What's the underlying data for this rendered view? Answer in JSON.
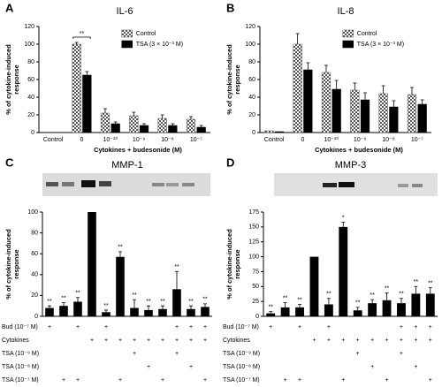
{
  "chart_data": [
    {
      "type": "bar",
      "panel": "A",
      "title": "IL-6",
      "ylabel": [
        "% of cytokine-induced",
        "response"
      ],
      "xlabel": "Cytokines + budesonide (M)",
      "categories": [
        "Control",
        "0",
        "10⁻¹⁰",
        "10⁻⁹",
        "10⁻⁸",
        "10⁻⁷"
      ],
      "series": [
        {
          "name": "Control",
          "color": "#555555",
          "pattern": "checker",
          "values": [
            0,
            100,
            22,
            19,
            16,
            15
          ],
          "errors": [
            0,
            2,
            5,
            4,
            4,
            3
          ]
        },
        {
          "name": "TSA (3 × 10⁻³ M)",
          "color": "#000000",
          "values": [
            0,
            65,
            10,
            8,
            8,
            6
          ],
          "errors": [
            0,
            4,
            2,
            2,
            2,
            2
          ]
        }
      ],
      "significance": [
        null,
        "**",
        null,
        null,
        null,
        null
      ],
      "ylim": [
        0,
        120
      ],
      "yticks": [
        0,
        20,
        40,
        60,
        80,
        100,
        120
      ]
    },
    {
      "type": "bar",
      "panel": "B",
      "title": "IL-8",
      "ylabel": [
        "% of cytokine-induced",
        "response"
      ],
      "xlabel": "Cytokines + budesonide (M)",
      "categories": [
        "Control",
        "0",
        "10⁻¹⁰",
        "10⁻⁹",
        "10⁻⁸",
        "10⁻⁷"
      ],
      "series": [
        {
          "name": "Control",
          "color": "#555555",
          "pattern": "checker",
          "values": [
            2,
            100,
            68,
            48,
            44,
            43
          ],
          "errors": [
            0,
            12,
            8,
            8,
            9,
            8
          ]
        },
        {
          "name": "TSA (3 × 10⁻³ M)",
          "color": "#000000",
          "values": [
            1,
            71,
            49,
            37,
            29,
            32
          ],
          "errors": [
            0,
            8,
            10,
            8,
            7,
            5
          ]
        }
      ],
      "ylim": [
        0,
        120
      ],
      "yticks": [
        0,
        20,
        40,
        60,
        80,
        100,
        120
      ]
    },
    {
      "type": "bar",
      "panel": "C",
      "title": "MMP-1",
      "ylabel": [
        "% of cytokine-induced",
        "response"
      ],
      "color": "#000000",
      "values": [
        8,
        10,
        14,
        100,
        4,
        57,
        8,
        6,
        7,
        26,
        7,
        9
      ],
      "errors": [
        2,
        3,
        4,
        0,
        2,
        5,
        8,
        4,
        3,
        17,
        3,
        3
      ],
      "significance": [
        "**",
        "**",
        "**",
        null,
        "**",
        "**",
        "**",
        "**",
        "**",
        "**",
        "**",
        "**"
      ],
      "ylim": [
        0,
        100
      ],
      "yticks": [
        0,
        20,
        40,
        60,
        80,
        100
      ],
      "table": [
        {
          "label": "Bud (10⁻⁷ M)",
          "marks": [
            "+",
            null,
            "+",
            null,
            "+",
            null,
            null,
            null,
            null,
            "+",
            "+",
            "+"
          ]
        },
        {
          "label": "Cytokines",
          "marks": [
            null,
            null,
            null,
            "+",
            "+",
            "+",
            "+",
            "+",
            "+",
            "+",
            "+",
            "+"
          ]
        },
        {
          "label": "TSA (10⁻⁹ M)",
          "marks": [
            null,
            null,
            null,
            null,
            null,
            null,
            "+",
            null,
            null,
            "+",
            null,
            null
          ]
        },
        {
          "label": "TSA (10⁻⁸ M)",
          "marks": [
            null,
            null,
            null,
            null,
            null,
            null,
            null,
            "+",
            null,
            null,
            "+",
            null
          ]
        },
        {
          "label": "TSA (10⁻⁷ M)",
          "marks": [
            null,
            "+",
            "+",
            null,
            null,
            "+",
            null,
            null,
            "+",
            null,
            null,
            "+"
          ]
        }
      ]
    },
    {
      "type": "bar",
      "panel": "D",
      "title": "MMP-3",
      "ylabel": [
        "% of cytokine-induced",
        "response"
      ],
      "color": "#000000",
      "values": [
        5,
        15,
        15,
        100,
        20,
        150,
        10,
        22,
        27,
        22,
        38,
        38
      ],
      "errors": [
        3,
        8,
        5,
        0,
        10,
        8,
        5,
        6,
        12,
        8,
        12,
        10
      ],
      "significance": [
        "**",
        "**",
        "**",
        null,
        "**",
        "*",
        "**",
        "**",
        "**",
        "**",
        "**",
        "**"
      ],
      "ylim": [
        0,
        175
      ],
      "yticks": [
        0,
        25,
        50,
        75,
        100,
        125,
        150,
        175
      ],
      "table": [
        {
          "label": "Bud (10⁻⁷ M)",
          "marks": [
            "+",
            null,
            "+",
            null,
            "+",
            null,
            null,
            null,
            null,
            "+",
            "+",
            "+"
          ]
        },
        {
          "label": "Cytokines",
          "marks": [
            null,
            null,
            null,
            "+",
            "+",
            "+",
            "+",
            "+",
            "+",
            "+",
            "+",
            "+"
          ]
        },
        {
          "label": "TSA (10⁻⁹ M)",
          "marks": [
            null,
            null,
            null,
            null,
            null,
            null,
            "+",
            null,
            null,
            "+",
            null,
            null
          ]
        },
        {
          "label": "TSA (10⁻⁸ M)",
          "marks": [
            null,
            null,
            null,
            null,
            null,
            null,
            null,
            "+",
            null,
            null,
            "+",
            null
          ]
        },
        {
          "label": "TSA (10⁻⁷ M)",
          "marks": [
            null,
            "+",
            "+",
            null,
            null,
            "+",
            null,
            null,
            "+",
            null,
            null,
            "+"
          ]
        }
      ]
    }
  ]
}
